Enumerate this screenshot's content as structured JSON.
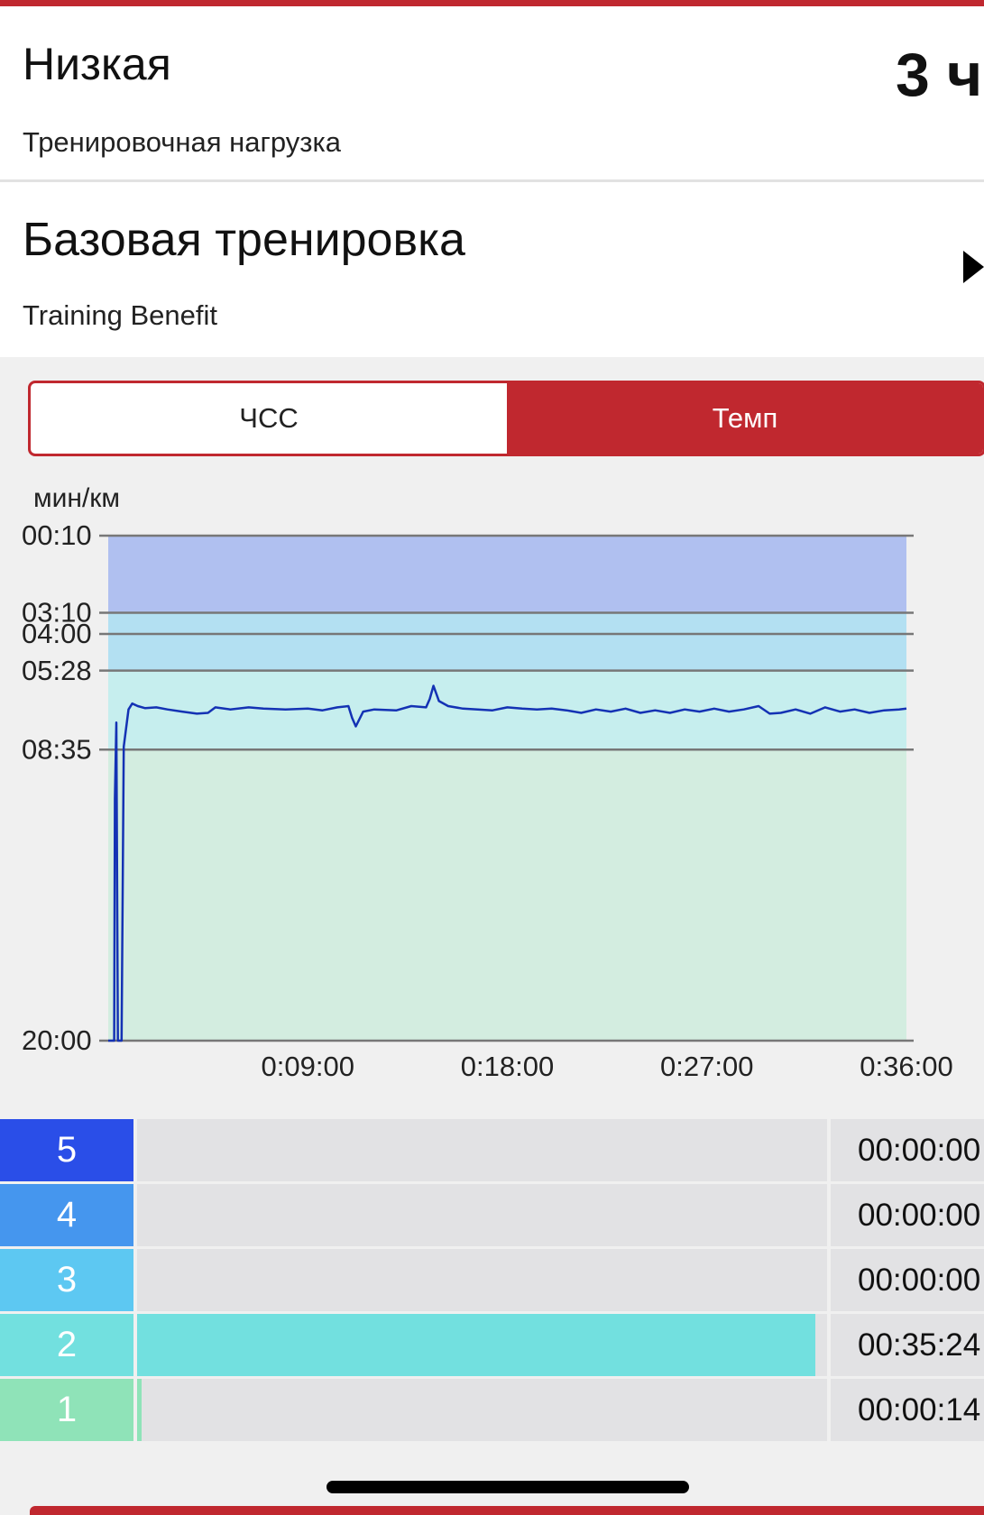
{
  "header": {
    "title": "Низкая",
    "subtitle": "Тренировочная нагрузка",
    "value": "3 ч"
  },
  "benefit": {
    "title": "Базовая тренировка",
    "subtitle": "Training Benefit"
  },
  "tabs": [
    {
      "label": "ЧСС",
      "active": false
    },
    {
      "label": "Темп",
      "active": true
    }
  ],
  "chart_data": {
    "type": "line",
    "y_label": "мин/км",
    "x": [
      0,
      16,
      18,
      22,
      26,
      36,
      42,
      55,
      65,
      80,
      100,
      130,
      160,
      200,
      240,
      270,
      290,
      330,
      380,
      420,
      480,
      540,
      580,
      620,
      650,
      660,
      670,
      690,
      720,
      780,
      820,
      860,
      870,
      880,
      895,
      920,
      960,
      1000,
      1040,
      1080,
      1120,
      1160,
      1200,
      1240,
      1280,
      1320,
      1360,
      1400,
      1440,
      1480,
      1520,
      1560,
      1600,
      1640,
      1680,
      1720,
      1760,
      1790,
      1820,
      1860,
      1900,
      1940,
      1980,
      2020,
      2060,
      2100,
      2140,
      2160
    ],
    "series": [
      {
        "color": "#1432b4",
        "values": [
          1200,
          1200,
          630,
          451,
          1200,
          1200,
          508,
          420,
          406,
          412,
          417,
          415,
          420,
          425,
          430,
          428,
          415,
          420,
          415,
          418,
          420,
          418,
          422,
          415,
          412,
          440,
          460,
          425,
          420,
          422,
          412,
          415,
          395,
          364,
          400,
          412,
          418,
          420,
          422,
          415,
          418,
          420,
          418,
          422,
          428,
          420,
          425,
          418,
          428,
          422,
          428,
          420,
          425,
          418,
          425,
          420,
          412,
          430,
          428,
          420,
          430,
          415,
          425,
          420,
          428,
          422,
          420,
          418
        ]
      }
    ],
    "xlim": [
      0,
      2160
    ],
    "xticks": [
      {
        "value": 540,
        "label": "0:09:00"
      },
      {
        "value": 1080,
        "label": "0:18:00"
      },
      {
        "value": 1620,
        "label": "0:27:00"
      },
      {
        "value": 2160,
        "label": "0:36:00"
      }
    ],
    "ylim": [
      10,
      1200
    ],
    "yticks": [
      {
        "value": 10,
        "label": "00:10"
      },
      {
        "value": 190,
        "label": "03:10"
      },
      {
        "value": 240,
        "label": "04:00"
      },
      {
        "value": 328,
        "label": "05:28"
      },
      {
        "value": 515,
        "label": "08:35"
      },
      {
        "value": 1200,
        "label": "20:00"
      }
    ],
    "band_colors": [
      "#b0c0f0",
      "#b3e0f2",
      "#b3e0f2",
      "#c6eeee",
      "#d3ede0"
    ],
    "grid": true
  },
  "zones": {
    "labels": [
      "5",
      "4",
      "3",
      "2",
      "1"
    ],
    "colors": [
      "#2a4ee8",
      "#4596ee",
      "#5dc8f2",
      "#72e0df",
      "#8fe3b8"
    ],
    "values": [
      0,
      0,
      0,
      2124,
      14
    ],
    "value_labels": [
      "00:00:00",
      "00:00:00",
      "00:00:00",
      "00:35:24",
      "00:00:14"
    ],
    "xlim": [
      0,
      2160
    ]
  }
}
